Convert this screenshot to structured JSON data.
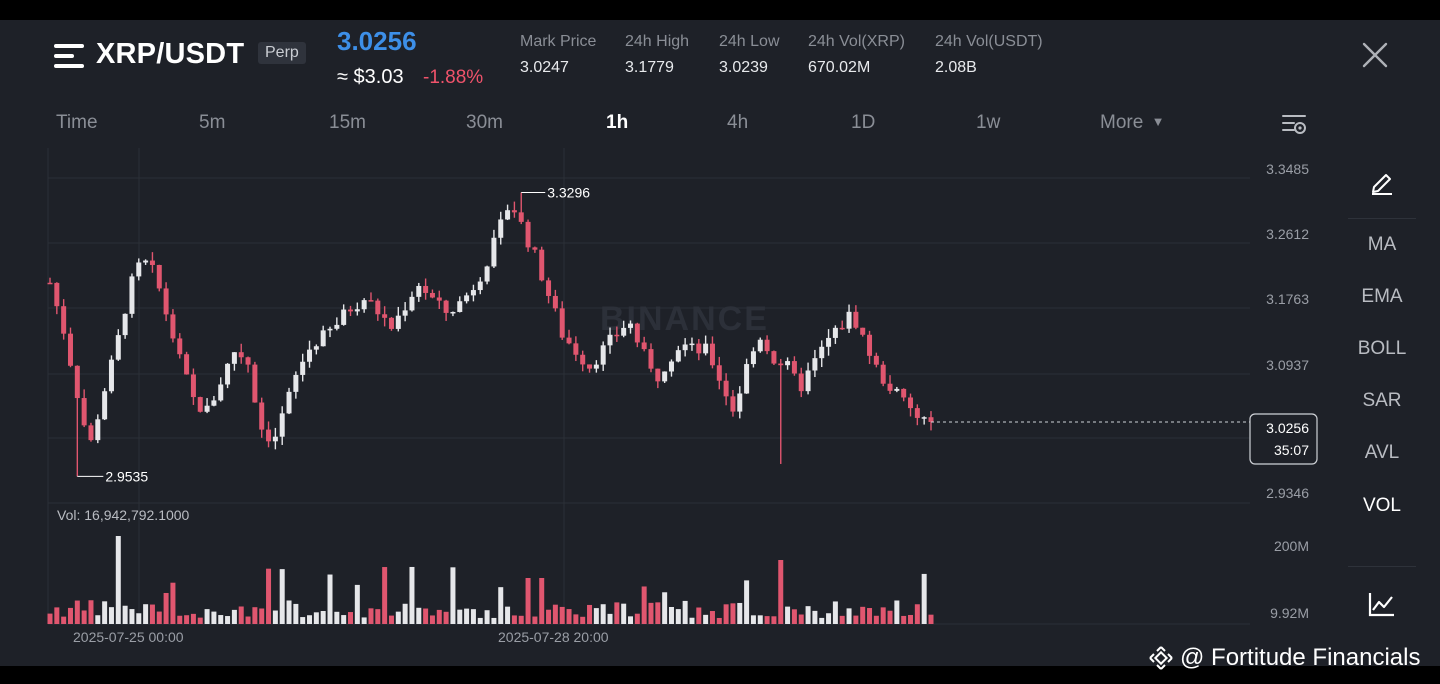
{
  "header": {
    "symbol": "XRP/USDT",
    "contract_type": "Perp",
    "last_price": "3.0256",
    "usd_value": "≈ $3.03",
    "change_pct": "-1.88%",
    "stats": [
      {
        "label": "Mark Price",
        "value": "3.0247"
      },
      {
        "label": "24h High",
        "value": "3.1779"
      },
      {
        "label": "24h Low",
        "value": "3.0239"
      },
      {
        "label": "24h Vol(XRP)",
        "value": "670.02M"
      },
      {
        "label": "24h Vol(USDT)",
        "value": "2.08B"
      }
    ]
  },
  "timeframes": [
    "Time",
    "5m",
    "15m",
    "30m",
    "1h",
    "4h",
    "1D",
    "1w",
    "More"
  ],
  "active_timeframe": "1h",
  "toolbar": {
    "indicators": [
      "MA",
      "EMA",
      "BOLL",
      "SAR",
      "AVL",
      "VOL"
    ],
    "active_indicator": "VOL",
    "icons": [
      "pencil-icon",
      "chart-trend-icon",
      "settings-icon",
      "close-icon",
      "menu-icon",
      "caret-down-icon"
    ]
  },
  "chart": {
    "watermark": "BINANCE",
    "price_axis": [
      "3.3485",
      "3.2612",
      "3.1763",
      "3.0937",
      "2.9346"
    ],
    "high_marker": "3.3296",
    "low_marker": "2.9535",
    "current_label": "3.0256",
    "countdown": "35:07",
    "volume_label": "Vol: 16,942,792.1000",
    "volume_axis": [
      "200M",
      "9.92M"
    ],
    "time_axis": [
      "2025-07-25 00:00",
      "2025-07-28 20:00"
    ]
  },
  "colors": {
    "up": "#e6e7ea",
    "down": "#e0566f",
    "accent": "#3d8fe8",
    "background": "#1e2128"
  },
  "credit": "@ Fortitude Financials",
  "chart_data": {
    "type": "candlestick",
    "symbol": "XRP/USDT",
    "interval": "1h",
    "ylim": [
      2.93,
      3.35
    ],
    "yticks": [
      3.3485,
      3.2612,
      3.1763,
      3.0937,
      2.9346
    ],
    "period_high": 3.3296,
    "period_low": 2.9535,
    "last": 3.0256,
    "close_path": [
      3.21,
      3.15,
      3.07,
      2.99,
      3.06,
      3.12,
      3.2,
      3.24,
      3.22,
      3.16,
      3.1,
      3.05,
      3.04,
      3.08,
      3.12,
      3.11,
      3.02,
      3.0,
      3.05,
      3.1,
      3.13,
      3.14,
      3.16,
      3.18,
      3.19,
      3.17,
      3.15,
      3.18,
      3.21,
      3.19,
      3.17,
      3.18,
      3.2,
      3.23,
      3.27,
      3.32,
      3.28,
      3.24,
      3.19,
      3.14,
      3.12,
      3.1,
      3.12,
      3.14,
      3.16,
      3.12,
      3.08,
      3.11,
      3.13,
      3.12,
      3.12,
      3.08,
      3.04,
      3.1,
      3.14,
      3.11,
      3.1,
      3.07,
      3.1,
      3.13,
      3.15,
      3.17,
      3.13,
      3.09,
      3.07,
      3.05,
      3.03,
      3.026
    ],
    "volume_axis": [
      "200M",
      "9.92M"
    ]
  }
}
